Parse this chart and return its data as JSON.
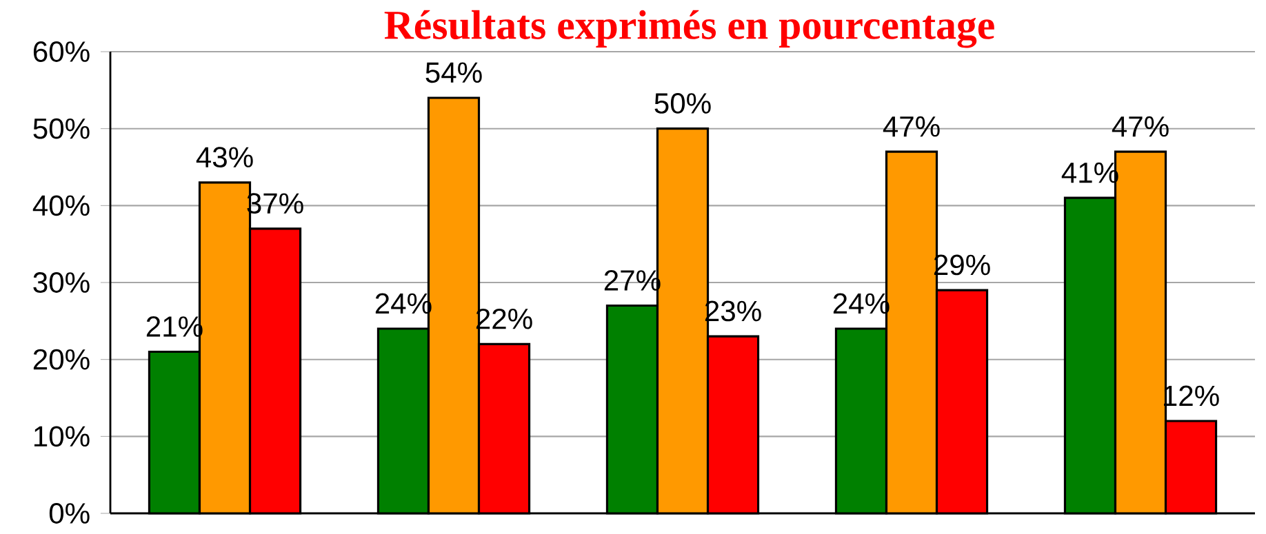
{
  "chart_data": {
    "type": "bar",
    "title": "Résultats exprimés en pourcentage",
    "categories": [
      null,
      null,
      null,
      null,
      null
    ],
    "series": [
      {
        "color": "#008000",
        "values": [
          21,
          24,
          27,
          24,
          41
        ],
        "value_labels": [
          "21%",
          "24%",
          "27%",
          "24%",
          "41%"
        ]
      },
      {
        "color": "#ff9900",
        "values": [
          43,
          54,
          50,
          47,
          47
        ],
        "value_labels": [
          "43%",
          "54%",
          "50%",
          "47%",
          "47%"
        ]
      },
      {
        "color": "#ff0000",
        "values": [
          37,
          22,
          23,
          29,
          12
        ],
        "value_labels": [
          "37%",
          "22%",
          "23%",
          "29%",
          "12%"
        ]
      }
    ],
    "ylim": [
      0,
      60
    ],
    "yticks": [
      {
        "value": 0,
        "label": "0%"
      },
      {
        "value": 10,
        "label": "10%"
      },
      {
        "value": 20,
        "label": "20%"
      },
      {
        "value": 30,
        "label": "30%"
      },
      {
        "value": 40,
        "label": "40%"
      },
      {
        "value": 50,
        "label": "50%"
      },
      {
        "value": 60,
        "label": "60%"
      }
    ],
    "grid": "y"
  }
}
